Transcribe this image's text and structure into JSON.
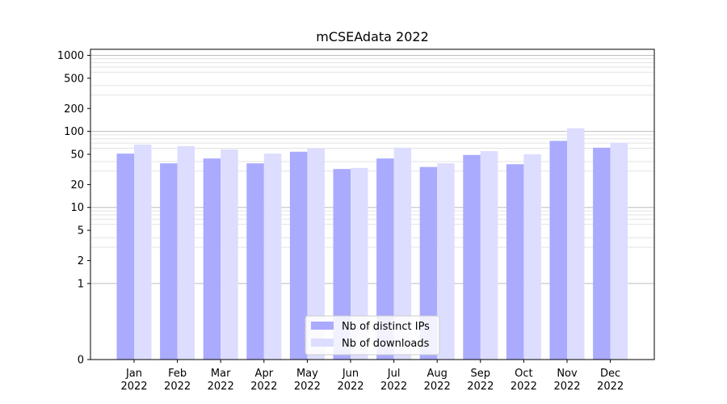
{
  "chart_data": {
    "type": "bar",
    "title": "mCSEAdata 2022",
    "xlabel": "",
    "ylabel": "",
    "yscale": "symlog",
    "ylim": [
      0,
      1200
    ],
    "yticks": [
      0,
      1,
      2,
      5,
      10,
      20,
      50,
      100,
      200,
      500,
      1000
    ],
    "categories": [
      [
        "Jan",
        "2022"
      ],
      [
        "Feb",
        "2022"
      ],
      [
        "Mar",
        "2022"
      ],
      [
        "Apr",
        "2022"
      ],
      [
        "May",
        "2022"
      ],
      [
        "Jun",
        "2022"
      ],
      [
        "Jul",
        "2022"
      ],
      [
        "Aug",
        "2022"
      ],
      [
        "Sep",
        "2022"
      ],
      [
        "Oct",
        "2022"
      ],
      [
        "Nov",
        "2022"
      ],
      [
        "Dec",
        "2022"
      ]
    ],
    "series": [
      {
        "name": "Nb of distinct IPs",
        "color": "#aaaaff",
        "values": [
          51,
          38,
          44,
          38,
          54,
          32,
          44,
          34,
          49,
          37,
          75,
          61
        ]
      },
      {
        "name": "Nb of downloads",
        "color": "#ddddff",
        "values": [
          67,
          64,
          58,
          51,
          60,
          33,
          61,
          38,
          55,
          50,
          110,
          71
        ]
      }
    ],
    "grid": true,
    "legend": "bottom-center"
  }
}
